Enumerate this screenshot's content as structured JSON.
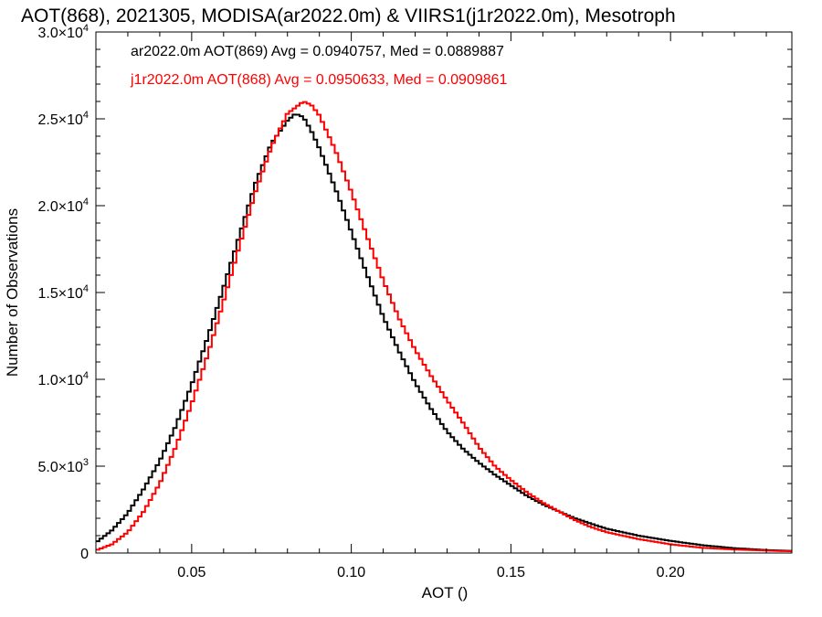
{
  "chart_data": {
    "type": "line",
    "step": true,
    "title": "AOT(868), 2021305, MODISA(ar2022.0m) & VIIRS1(j1r2022.0m), Mesotroph",
    "xlabel": "AOT ()",
    "ylabel": "Number of Observations",
    "xlim": [
      0.02,
      0.238
    ],
    "ylim": [
      0,
      30000
    ],
    "x_ticks": [
      {
        "value": 0.05,
        "label": "0.05"
      },
      {
        "value": 0.1,
        "label": "0.10"
      },
      {
        "value": 0.15,
        "label": "0.15"
      },
      {
        "value": 0.2,
        "label": "0.20"
      }
    ],
    "y_ticks": [
      {
        "value": 0,
        "mant": "0",
        "exp": ""
      },
      {
        "value": 5000,
        "mant": "5.0×10",
        "exp": "3"
      },
      {
        "value": 10000,
        "mant": "1.0×10",
        "exp": "4"
      },
      {
        "value": 15000,
        "mant": "1.5×10",
        "exp": "4"
      },
      {
        "value": 20000,
        "mant": "2.0×10",
        "exp": "4"
      },
      {
        "value": 25000,
        "mant": "2.5×10",
        "exp": "4"
      },
      {
        "value": 30000,
        "mant": "3.0×10",
        "exp": "4"
      }
    ],
    "grid": false,
    "annotations": [
      {
        "text": "ar2022.0m AOT(869) Avg = 0.0940757, Med = 0.0889887",
        "color": "#000000"
      },
      {
        "text": "j1r2022.0m AOT(868) Avg = 0.0950633, Med = 0.0909861",
        "color": "#ff0000"
      }
    ],
    "series": [
      {
        "color": "#000000",
        "x": [
          0.02,
          0.025,
          0.03,
          0.035,
          0.04,
          0.045,
          0.05,
          0.055,
          0.06,
          0.065,
          0.07,
          0.075,
          0.08,
          0.0825,
          0.085,
          0.0875,
          0.09,
          0.095,
          0.1,
          0.105,
          0.11,
          0.115,
          0.12,
          0.125,
          0.13,
          0.135,
          0.14,
          0.145,
          0.15,
          0.155,
          0.16,
          0.165,
          0.17,
          0.175,
          0.18,
          0.19,
          0.2,
          0.21,
          0.22,
          0.23,
          0.238
        ],
        "y": [
          600,
          1300,
          2300,
          3700,
          5300,
          7300,
          9700,
          12400,
          15300,
          18300,
          21300,
          23600,
          24900,
          25300,
          25100,
          24300,
          23300,
          21000,
          18500,
          16000,
          13600,
          11600,
          9800,
          8300,
          7000,
          6000,
          5200,
          4500,
          3900,
          3300,
          2800,
          2400,
          2000,
          1700,
          1400,
          1000,
          700,
          450,
          280,
          170,
          120
        ]
      },
      {
        "color": "#ff0000",
        "x": [
          0.02,
          0.025,
          0.03,
          0.035,
          0.04,
          0.045,
          0.05,
          0.055,
          0.06,
          0.065,
          0.07,
          0.075,
          0.08,
          0.085,
          0.0875,
          0.09,
          0.095,
          0.1,
          0.105,
          0.11,
          0.115,
          0.12,
          0.125,
          0.13,
          0.135,
          0.14,
          0.145,
          0.15,
          0.155,
          0.16,
          0.165,
          0.17,
          0.175,
          0.18,
          0.19,
          0.2,
          0.21,
          0.22,
          0.23,
          0.238
        ],
        "y": [
          150,
          500,
          1200,
          2400,
          4000,
          6100,
          8600,
          11400,
          14500,
          17700,
          20800,
          23400,
          25300,
          26000,
          25800,
          25200,
          23200,
          20800,
          18200,
          15700,
          13500,
          11700,
          10200,
          8800,
          7500,
          6100,
          5000,
          4200,
          3500,
          2900,
          2400,
          1900,
          1500,
          1200,
          800,
          500,
          300,
          200,
          140,
          100
        ]
      }
    ]
  }
}
